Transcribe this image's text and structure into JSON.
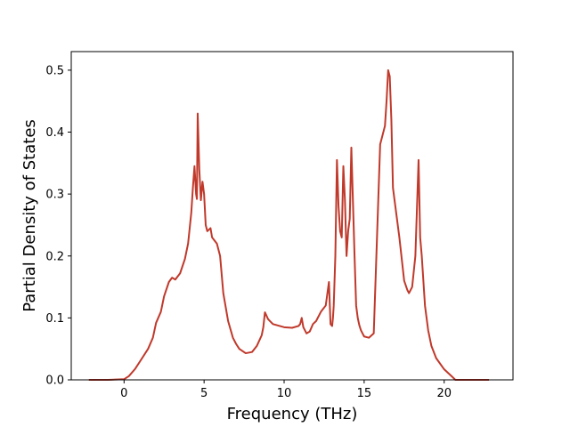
{
  "chart_data": {
    "type": "line",
    "xlabel": "Frequency (THz)",
    "ylabel": "Partial Density of States",
    "xlim": [
      -3.3,
      24.3
    ],
    "ylim": [
      0.0,
      0.53
    ],
    "xticks": [
      0,
      5,
      10,
      15,
      20
    ],
    "yticks": [
      0.0,
      0.1,
      0.2,
      0.3,
      0.4,
      0.5
    ],
    "xtick_labels": [
      "0",
      "5",
      "10",
      "15",
      "20"
    ],
    "ytick_labels": [
      "0.0",
      "0.1",
      "0.2",
      "0.3",
      "0.4",
      "0.5"
    ],
    "grid": false,
    "line_color": "#c0392b",
    "series": [
      {
        "x": [
          -2.2,
          -1.0,
          0.0,
          0.3,
          0.7,
          1.0,
          1.5,
          1.8,
          2.0,
          2.3,
          2.5,
          2.8,
          3.0,
          3.2,
          3.5,
          3.8,
          4.0,
          4.1,
          4.2,
          4.3,
          4.4,
          4.5,
          4.55,
          4.6,
          4.7,
          4.8,
          4.9,
          5.0,
          5.1,
          5.2,
          5.4,
          5.5,
          5.8,
          6.0,
          6.2,
          6.5,
          6.8,
          7.0,
          7.2,
          7.6,
          8.0,
          8.3,
          8.6,
          8.7,
          8.8,
          9.0,
          9.3,
          10.0,
          10.5,
          10.9,
          11.0,
          11.1,
          11.2,
          11.4,
          11.6,
          11.8,
          12.0,
          12.3,
          12.6,
          12.8,
          12.9,
          13.0,
          13.05,
          13.1,
          13.2,
          13.3,
          13.4,
          13.5,
          13.6,
          13.7,
          13.8,
          13.9,
          14.0,
          14.1,
          14.2,
          14.4,
          14.5,
          14.6,
          14.7,
          14.8,
          14.9,
          15.0,
          15.3,
          15.6,
          16.0,
          16.3,
          16.4,
          16.5,
          16.6,
          16.7,
          16.8,
          16.9,
          17.0,
          17.2,
          17.5,
          17.7,
          17.8,
          18.0,
          18.2,
          18.4,
          18.5,
          18.6,
          18.7,
          18.8,
          18.9,
          19.0,
          19.2,
          19.5,
          20.0,
          20.5,
          20.7,
          20.8,
          21.0,
          22.8
        ],
        "y": [
          0.0,
          0.0,
          0.001,
          0.006,
          0.018,
          0.03,
          0.05,
          0.068,
          0.092,
          0.11,
          0.135,
          0.158,
          0.165,
          0.162,
          0.172,
          0.195,
          0.22,
          0.245,
          0.27,
          0.31,
          0.345,
          0.3,
          0.292,
          0.43,
          0.34,
          0.29,
          0.32,
          0.3,
          0.25,
          0.24,
          0.245,
          0.23,
          0.22,
          0.2,
          0.14,
          0.095,
          0.068,
          0.058,
          0.05,
          0.043,
          0.045,
          0.055,
          0.072,
          0.085,
          0.109,
          0.098,
          0.09,
          0.085,
          0.084,
          0.087,
          0.09,
          0.1,
          0.085,
          0.075,
          0.078,
          0.09,
          0.095,
          0.11,
          0.12,
          0.158,
          0.09,
          0.087,
          0.1,
          0.12,
          0.2,
          0.355,
          0.28,
          0.24,
          0.23,
          0.345,
          0.29,
          0.2,
          0.24,
          0.26,
          0.375,
          0.2,
          0.12,
          0.1,
          0.088,
          0.08,
          0.075,
          0.07,
          0.068,
          0.075,
          0.38,
          0.41,
          0.45,
          0.5,
          0.49,
          0.42,
          0.31,
          0.29,
          0.27,
          0.23,
          0.16,
          0.145,
          0.14,
          0.15,
          0.2,
          0.355,
          0.23,
          0.2,
          0.16,
          0.12,
          0.1,
          0.08,
          0.055,
          0.035,
          0.017,
          0.005,
          0.0,
          0.0,
          0.0,
          0.0
        ]
      }
    ]
  }
}
